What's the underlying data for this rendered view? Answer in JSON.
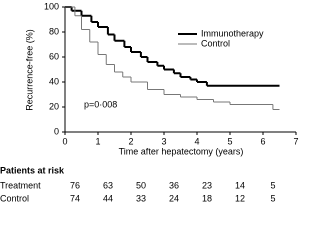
{
  "chart_data": {
    "type": "step",
    "xlabel": "Time after hepatectomy (years)",
    "ylabel": "Recurrence-free (%)",
    "annotation": "p=0·008",
    "xlim": [
      0,
      7
    ],
    "xticks": [
      0,
      1,
      2,
      3,
      4,
      5,
      6,
      7
    ],
    "ylim": [
      0,
      100
    ],
    "yticks": [
      0,
      20,
      40,
      60,
      80,
      100
    ],
    "grid": false,
    "legend": "upper right",
    "series": [
      {
        "name": "Immunotherapy",
        "color": "#000000",
        "width": 2,
        "x": [
          0,
          0.2,
          0.5,
          0.8,
          1,
          1.3,
          1.5,
          1.8,
          2,
          2.3,
          2.5,
          2.8,
          3,
          3.3,
          3.5,
          3.8,
          4,
          4.3,
          6.5
        ],
        "values": [
          100,
          97,
          93,
          88,
          84,
          78,
          73,
          68,
          64,
          60,
          56,
          53,
          50,
          47,
          44,
          42,
          40,
          37,
          37
        ]
      },
      {
        "name": "Control",
        "color": "#777777",
        "width": 1,
        "x": [
          0,
          0.3,
          0.5,
          0.75,
          1,
          1.25,
          1.5,
          1.75,
          2,
          2.5,
          3,
          3.5,
          4,
          4.5,
          5,
          6.3,
          6.5
        ],
        "values": [
          100,
          93,
          82,
          72,
          62,
          54,
          48,
          44,
          40,
          34,
          30,
          28,
          26,
          24,
          22,
          18,
          18
        ]
      }
    ]
  },
  "risk_table": {
    "title": "Patients at risk",
    "rows": [
      {
        "label": "Treatment",
        "values": [
          76,
          63,
          50,
          36,
          23,
          14,
          5
        ]
      },
      {
        "label": "Control",
        "values": [
          74,
          44,
          33,
          24,
          18,
          12,
          5
        ]
      }
    ]
  }
}
